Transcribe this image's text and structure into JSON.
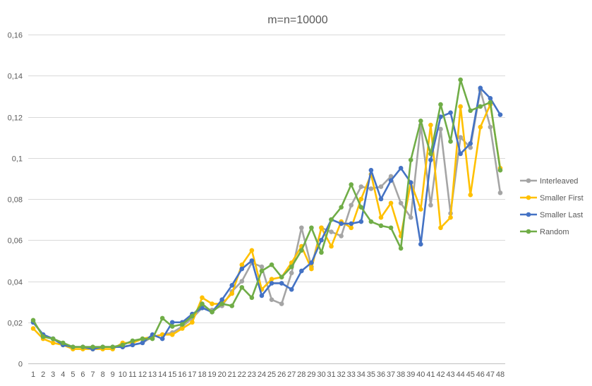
{
  "chart_data": {
    "type": "line",
    "title": "m=n=10000",
    "xlabel": "",
    "ylabel": "",
    "categories": [
      "1",
      "2",
      "3",
      "4",
      "5",
      "6",
      "7",
      "8",
      "9",
      "10",
      "11",
      "12",
      "13",
      "14",
      "15",
      "16",
      "17",
      "18",
      "19",
      "20",
      "21",
      "22",
      "23",
      "24",
      "25",
      "26",
      "27",
      "28",
      "29",
      "30",
      "31",
      "32",
      "33",
      "34",
      "35",
      "36",
      "37",
      "38",
      "39",
      "40",
      "41",
      "42",
      "43",
      "44",
      "45",
      "46",
      "47",
      "48"
    ],
    "y_ticks": [
      "0",
      "0,02",
      "0,04",
      "0,06",
      "0,08",
      "0,1",
      "0,12",
      "0,14",
      "0,16"
    ],
    "ylim": [
      0,
      0.16
    ],
    "grid": true,
    "legend_position": "right",
    "series": [
      {
        "name": "Interleaved",
        "color": "#A5A5A5",
        "values": [
          0.02,
          0.014,
          0.012,
          0.009,
          0.008,
          0.008,
          0.008,
          0.008,
          0.008,
          0.008,
          0.009,
          0.01,
          0.013,
          0.014,
          0.015,
          0.018,
          0.022,
          0.027,
          0.026,
          0.028,
          0.035,
          0.04,
          0.049,
          0.047,
          0.031,
          0.029,
          0.044,
          0.066,
          0.047,
          0.066,
          0.064,
          0.062,
          0.077,
          0.086,
          0.085,
          0.086,
          0.091,
          0.078,
          0.071,
          0.116,
          0.077,
          0.114,
          0.073,
          0.11,
          0.105,
          0.133,
          0.115,
          0.083
        ]
      },
      {
        "name": "Smaller First",
        "color": "#FFC000",
        "values": [
          0.017,
          0.012,
          0.01,
          0.009,
          0.007,
          0.007,
          0.007,
          0.007,
          0.007,
          0.01,
          0.01,
          0.012,
          0.013,
          0.014,
          0.014,
          0.017,
          0.02,
          0.032,
          0.029,
          0.029,
          0.034,
          0.048,
          0.055,
          0.036,
          0.041,
          0.042,
          0.049,
          0.057,
          0.046,
          0.066,
          0.057,
          0.069,
          0.066,
          0.08,
          0.092,
          0.071,
          0.078,
          0.062,
          0.088,
          0.075,
          0.116,
          0.066,
          0.071,
          0.125,
          0.082,
          0.115,
          0.126,
          0.095
        ]
      },
      {
        "name": "Smaller Last",
        "color": "#4472C4",
        "values": [
          0.02,
          0.014,
          0.012,
          0.009,
          0.008,
          0.008,
          0.007,
          0.008,
          0.008,
          0.008,
          0.009,
          0.01,
          0.014,
          0.012,
          0.02,
          0.02,
          0.024,
          0.027,
          0.025,
          0.031,
          0.038,
          0.046,
          0.05,
          0.033,
          0.039,
          0.039,
          0.036,
          0.045,
          0.049,
          0.06,
          0.07,
          0.068,
          0.068,
          0.069,
          0.094,
          0.08,
          0.089,
          0.095,
          0.088,
          0.058,
          0.099,
          0.12,
          0.122,
          0.102,
          0.107,
          0.134,
          0.129,
          0.121
        ]
      },
      {
        "name": "Random",
        "color": "#70AD47",
        "values": [
          0.021,
          0.013,
          0.012,
          0.01,
          0.008,
          0.008,
          0.008,
          0.008,
          0.008,
          0.009,
          0.011,
          0.012,
          0.012,
          0.022,
          0.018,
          0.019,
          0.023,
          0.029,
          0.025,
          0.029,
          0.028,
          0.037,
          0.032,
          0.045,
          0.048,
          0.042,
          0.047,
          0.055,
          0.066,
          0.054,
          0.07,
          0.076,
          0.087,
          0.076,
          0.069,
          0.067,
          0.066,
          0.056,
          0.099,
          0.118,
          0.102,
          0.126,
          0.108,
          0.138,
          0.123,
          0.125,
          0.127,
          0.094
        ]
      }
    ]
  }
}
